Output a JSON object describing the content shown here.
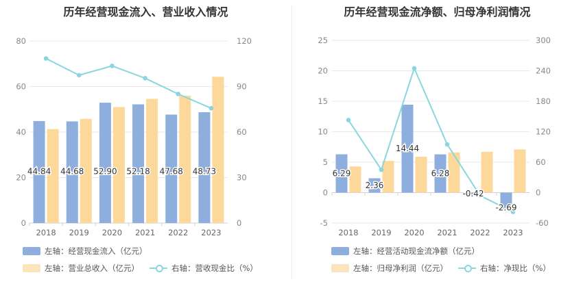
{
  "chart_data": [
    {
      "type": "bar",
      "title": "历年经营现金流入、营业收入情况",
      "categories": [
        "2018",
        "2019",
        "2020",
        "2021",
        "2022",
        "2023"
      ],
      "left_axis": {
        "ylim": [
          0,
          80
        ],
        "ticks": [
          "0",
          "20",
          "40",
          "60",
          "80"
        ]
      },
      "right_axis": {
        "ylim": [
          0,
          120
        ],
        "ticks": [
          "0",
          "30",
          "60",
          "90",
          "120"
        ]
      },
      "series": [
        {
          "name": "左轴：经营现金流入（亿元）",
          "kind": "bar",
          "axis": "left",
          "color": "#8eaede",
          "values": [
            44.84,
            44.68,
            52.9,
            52.18,
            47.68,
            48.73
          ],
          "labels": [
            "44.84",
            "44.68",
            "52.90",
            "52.18",
            "47.68",
            "48.73"
          ]
        },
        {
          "name": "左轴：营业总收入（亿元）",
          "kind": "bar",
          "axis": "left",
          "color": "#fcd89a",
          "values": [
            41.3,
            45.8,
            51.0,
            54.6,
            56.0,
            64.3
          ]
        },
        {
          "name": "右轴：营收现金比（%）",
          "kind": "line",
          "axis": "right",
          "color": "#8ad6de",
          "values": [
            108.5,
            97.5,
            103.6,
            95.5,
            85.1,
            75.7
          ]
        }
      ],
      "grid": true
    },
    {
      "type": "bar",
      "title": "历年经营现金流净额、归母净利润情况",
      "categories": [
        "2018",
        "2019",
        "2020",
        "2021",
        "2022",
        "2023"
      ],
      "left_axis": {
        "ylim": [
          -5,
          25
        ],
        "ticks": [
          "-5",
          "0",
          "5",
          "10",
          "15",
          "20",
          "25"
        ]
      },
      "right_axis": {
        "ylim": [
          -60,
          300
        ],
        "ticks": [
          "-60",
          "0",
          "60",
          "120",
          "180",
          "240",
          "300"
        ]
      },
      "series": [
        {
          "name": "左轴：经营活动现金流净额（亿元）",
          "kind": "bar",
          "axis": "left",
          "color": "#8eaede",
          "values": [
            6.29,
            2.36,
            14.44,
            6.28,
            -0.42,
            -2.69
          ],
          "labels": [
            "6.29",
            "2.36",
            "14.44",
            "6.28",
            "-0.42",
            "-2.69"
          ]
        },
        {
          "name": "左轴：归母净利润（亿元）",
          "kind": "bar",
          "axis": "left",
          "color": "#fcd89a",
          "values": [
            4.3,
            5.2,
            5.9,
            6.6,
            6.7,
            7.1
          ]
        },
        {
          "name": "右轴：净现比（%）",
          "kind": "line",
          "axis": "right",
          "color": "#8ad6de",
          "values": [
            143,
            45,
            245,
            95,
            -6,
            -38
          ]
        }
      ],
      "grid": true
    }
  ]
}
